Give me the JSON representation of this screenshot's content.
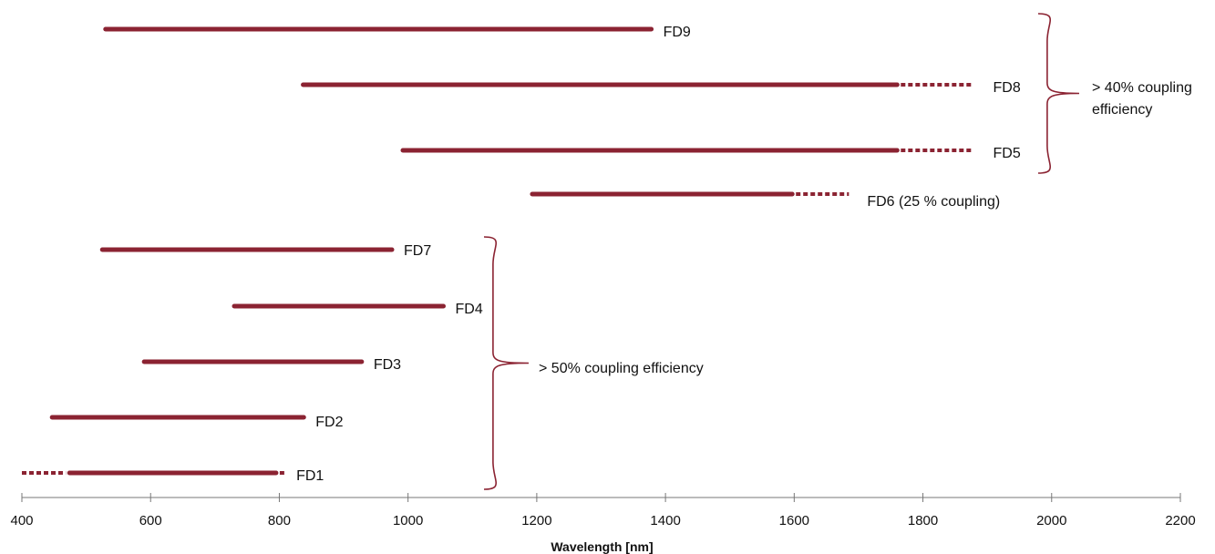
{
  "chart_data": {
    "type": "range",
    "xlabel": "Wavelength [nm]",
    "xlim": [
      400,
      2200
    ],
    "xticks": [
      400,
      600,
      800,
      1000,
      1200,
      1400,
      1600,
      1800,
      2000,
      2200
    ],
    "series_color": "#8b2332",
    "ranges": [
      {
        "name": "FD9",
        "label": "FD9",
        "start": 530,
        "end": 1378,
        "dotted_before": null,
        "dotted_after": null
      },
      {
        "name": "FD8",
        "label": "FD8",
        "start": 837,
        "end": 1760,
        "dotted_before": null,
        "dotted_after": 1875
      },
      {
        "name": "FD5",
        "label": "FD5",
        "start": 992,
        "end": 1760,
        "dotted_before": null,
        "dotted_after": 1875
      },
      {
        "name": "FD6",
        "label": "FD6 (25 % coupling)",
        "start": 1193,
        "end": 1597,
        "dotted_before": null,
        "dotted_after": 1685
      },
      {
        "name": "FD7",
        "label": "FD7",
        "start": 525,
        "end": 975,
        "dotted_before": null,
        "dotted_after": null
      },
      {
        "name": "FD4",
        "label": "FD4",
        "start": 730,
        "end": 1055,
        "dotted_before": null,
        "dotted_after": null
      },
      {
        "name": "FD3",
        "label": "FD3",
        "start": 590,
        "end": 928,
        "dotted_before": null,
        "dotted_after": null
      },
      {
        "name": "FD2",
        "label": "FD2",
        "start": 447,
        "end": 838,
        "dotted_before": null,
        "dotted_after": null
      },
      {
        "name": "FD1",
        "label": "FD1",
        "start": 474,
        "end": 795,
        "dotted_before": 400,
        "dotted_after": 808
      }
    ],
    "annotations": [
      {
        "name": "group-40",
        "lines": [
          "> 40% coupling",
          "efficiency"
        ],
        "members": [
          "FD9",
          "FD8",
          "FD5"
        ]
      },
      {
        "name": "group-50",
        "lines": [
          "> 50% coupling efficiency"
        ],
        "members": [
          "FD7",
          "FD4",
          "FD3",
          "FD2",
          "FD1"
        ]
      }
    ]
  }
}
